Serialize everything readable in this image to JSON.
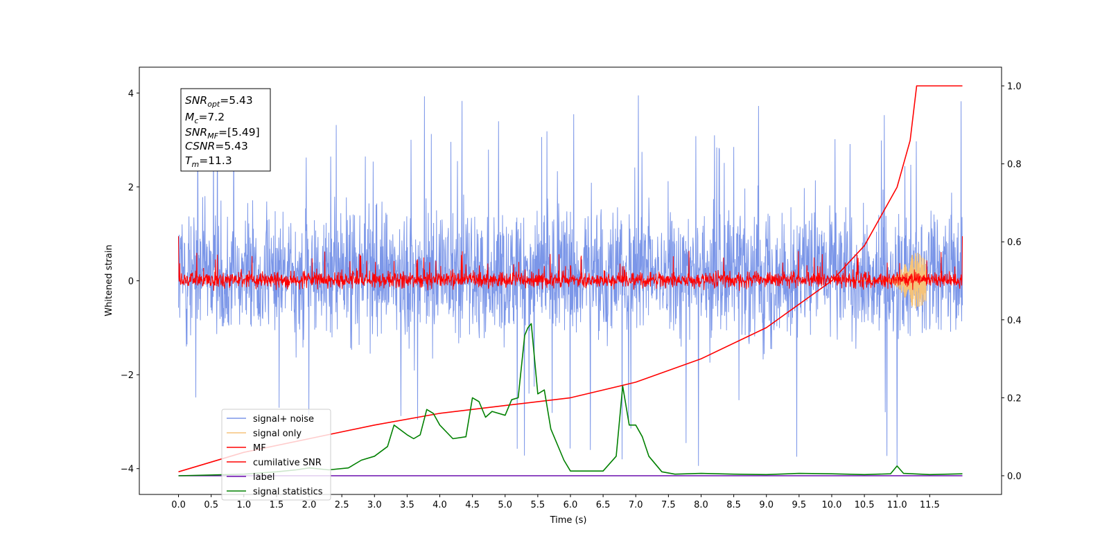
{
  "chart_data": {
    "type": "line",
    "xlabel": "Time (s)",
    "ylabel": "Whitened strain",
    "x_range": [
      -0.6,
      12.6
    ],
    "y_range": [
      -4.55,
      4.55
    ],
    "y2_range": [
      -0.048,
      1.048
    ],
    "x_ticks": [
      "0.0",
      "0.5",
      "1.0",
      "1.5",
      "2.0",
      "2.5",
      "3.0",
      "3.5",
      "4.0",
      "4.5",
      "5.0",
      "5.5",
      "6.0",
      "6.5",
      "7.0",
      "7.5",
      "8.0",
      "8.5",
      "9.0",
      "9.5",
      "10.0",
      "10.5",
      "11.0",
      "11.5"
    ],
    "y_ticks": [
      -4,
      -2,
      0,
      2,
      4
    ],
    "y_tick_labels": [
      "−4",
      "−2",
      "0",
      "2",
      "4"
    ],
    "y2_ticks": [
      "0.0",
      "0.2",
      "0.4",
      "0.6",
      "0.8",
      "1.0"
    ],
    "info_box": {
      "snr_opt": "=5.43",
      "mc": "=7.2",
      "snr_mf": "=[5.49]",
      "csnr": "=5.43",
      "tm": "=11.3"
    },
    "legend_position": "lower-left",
    "series": [
      {
        "name": "signal+ noise",
        "color": "#7b96e8",
        "axis": "left",
        "description": "dense noisy strain, roughly within -2.5 to 3.0, peaks near 4.1"
      },
      {
        "name": "signal only",
        "color": "#f5c37a",
        "axis": "left",
        "peak_time": 11.3,
        "peak_amplitude": 0.6
      },
      {
        "name": "MF",
        "color": "#ff0000",
        "axis": "left",
        "description": "matched-filter output, roughly -0.3 to 0.6"
      },
      {
        "name": "cumilative SNR",
        "color": "#ff0000",
        "axis": "right",
        "x": [
          0.0,
          1.0,
          2.0,
          3.0,
          4.0,
          5.0,
          6.0,
          7.0,
          8.0,
          9.0,
          10.0,
          10.5,
          11.0,
          11.2,
          11.3,
          12.0
        ],
        "y": [
          0.01,
          0.06,
          0.095,
          0.13,
          0.16,
          0.18,
          0.2,
          0.24,
          0.3,
          0.38,
          0.5,
          0.59,
          0.74,
          0.86,
          1.0,
          1.0
        ]
      },
      {
        "name": "label",
        "color": "#6a0dad",
        "axis": "right",
        "x": [
          0.0,
          12.0
        ],
        "y": [
          0.0,
          0.0
        ]
      },
      {
        "name": "signal statistics",
        "color": "#008000",
        "axis": "right",
        "x": [
          0.0,
          0.5,
          1.0,
          1.5,
          1.8,
          2.0,
          2.3,
          2.6,
          2.8,
          3.0,
          3.2,
          3.3,
          3.5,
          3.6,
          3.7,
          3.8,
          3.9,
          4.0,
          4.2,
          4.4,
          4.5,
          4.6,
          4.7,
          4.8,
          5.0,
          5.1,
          5.2,
          5.3,
          5.35,
          5.4,
          5.5,
          5.6,
          5.7,
          5.9,
          6.0,
          6.5,
          6.7,
          6.8,
          6.9,
          7.0,
          7.1,
          7.2,
          7.4,
          7.6,
          8.0,
          8.5,
          9.0,
          9.5,
          10.0,
          10.5,
          10.9,
          11.0,
          11.1,
          11.5,
          12.0
        ],
        "y": [
          0.0,
          0.002,
          0.004,
          0.01,
          0.015,
          0.02,
          0.015,
          0.02,
          0.04,
          0.05,
          0.075,
          0.13,
          0.105,
          0.095,
          0.105,
          0.17,
          0.16,
          0.13,
          0.095,
          0.1,
          0.2,
          0.19,
          0.15,
          0.165,
          0.155,
          0.195,
          0.2,
          0.36,
          0.38,
          0.39,
          0.21,
          0.22,
          0.12,
          0.04,
          0.012,
          0.012,
          0.05,
          0.23,
          0.13,
          0.13,
          0.1,
          0.05,
          0.01,
          0.004,
          0.006,
          0.004,
          0.003,
          0.006,
          0.005,
          0.003,
          0.005,
          0.025,
          0.006,
          0.003,
          0.005
        ]
      }
    ]
  }
}
